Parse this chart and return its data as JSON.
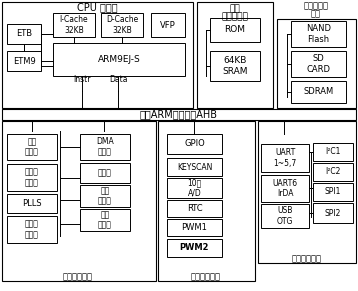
{
  "bg_color": "#ffffff",
  "cpu_title": "CPU 子系统",
  "bus_label": "多层ARM高速总线AHB",
  "mem_title_1": "片上",
  "mem_title_2": "存储器模块",
  "ext_title_1": "外部存储器",
  "ext_title_2": "接口",
  "sys_func_label": "系统功能模块",
  "other_label": "其他外围模块",
  "ext_periph_label": "外用通信模块"
}
